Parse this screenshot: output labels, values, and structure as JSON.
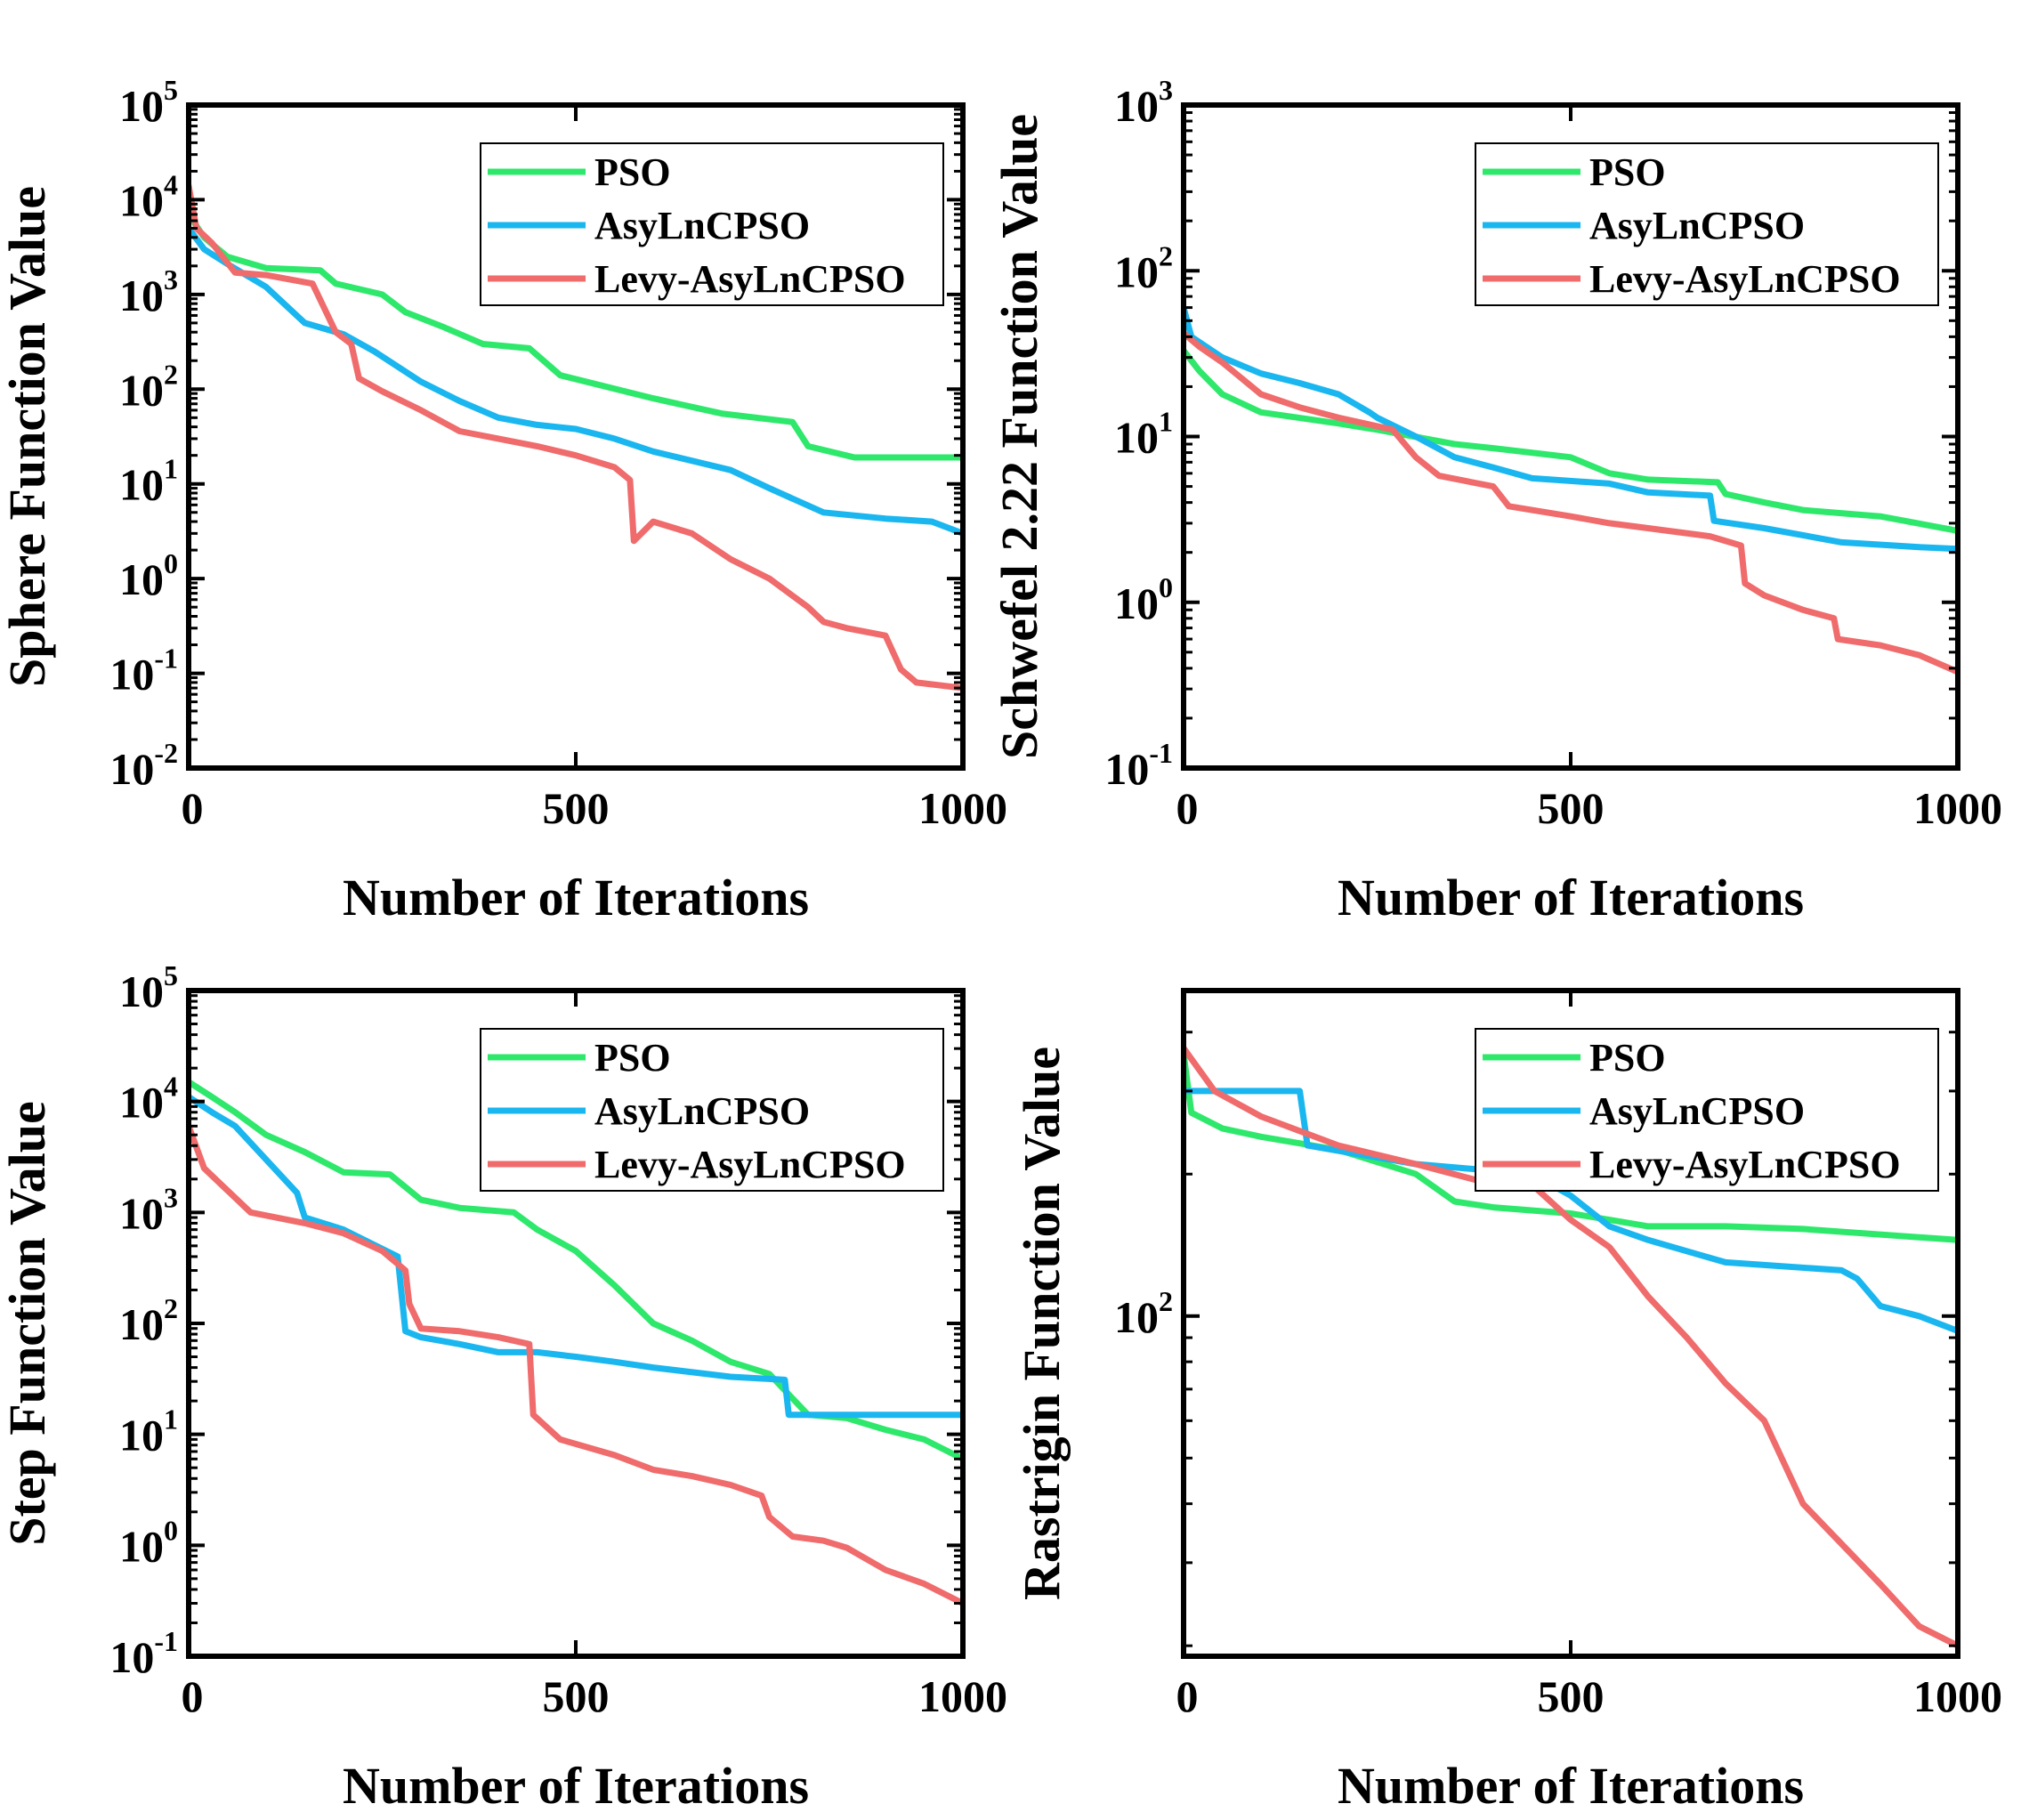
{
  "chart_data": [
    {
      "type": "line",
      "title": "",
      "xlabel": "Number of Iterations",
      "ylabel": "Sphere Function Value",
      "yscale": "log",
      "xlim": [
        0,
        1000
      ],
      "ylim_exp": [
        -2,
        5
      ],
      "xticks": [
        0,
        500,
        1000
      ],
      "yticks_exp": [
        -2,
        -1,
        0,
        1,
        2,
        3,
        4,
        5
      ],
      "legend_position": "top-right",
      "series": [
        {
          "name": "PSO",
          "color": "#2ee86b",
          "points": [
            [
              0,
              7000
            ],
            [
              20,
              4000
            ],
            [
              50,
              2500
            ],
            [
              100,
              1900
            ],
            [
              170,
              1800
            ],
            [
              190,
              1300
            ],
            [
              250,
              1000
            ],
            [
              280,
              650
            ],
            [
              330,
              450
            ],
            [
              380,
              300
            ],
            [
              440,
              270
            ],
            [
              480,
              140
            ],
            [
              600,
              80
            ],
            [
              690,
              55
            ],
            [
              780,
              45
            ],
            [
              800,
              25
            ],
            [
              860,
              19
            ],
            [
              1000,
              19
            ]
          ]
        },
        {
          "name": "AsyLnCPSO",
          "color": "#1ab6ef",
          "points": [
            [
              0,
              5000
            ],
            [
              20,
              3000
            ],
            [
              50,
              2100
            ],
            [
              100,
              1200
            ],
            [
              150,
              500
            ],
            [
              200,
              380
            ],
            [
              240,
              250
            ],
            [
              300,
              120
            ],
            [
              350,
              75
            ],
            [
              400,
              50
            ],
            [
              450,
              42
            ],
            [
              500,
              38
            ],
            [
              550,
              30
            ],
            [
              600,
              22
            ],
            [
              700,
              14
            ],
            [
              750,
              9
            ],
            [
              820,
              5
            ],
            [
              900,
              4.3
            ],
            [
              960,
              4
            ],
            [
              1000,
              3
            ]
          ]
        },
        {
          "name": "Levy-AsyLnCPSO",
          "color": "#f06b6b",
          "points": [
            [
              0,
              14000
            ],
            [
              10,
              5000
            ],
            [
              30,
              3500
            ],
            [
              60,
              1700
            ],
            [
              100,
              1600
            ],
            [
              160,
              1300
            ],
            [
              190,
              400
            ],
            [
              210,
              300
            ],
            [
              220,
              130
            ],
            [
              250,
              95
            ],
            [
              300,
              60
            ],
            [
              350,
              36
            ],
            [
              400,
              30
            ],
            [
              450,
              25
            ],
            [
              500,
              20
            ],
            [
              550,
              15
            ],
            [
              570,
              11
            ],
            [
              575,
              2.5
            ],
            [
              600,
              4
            ],
            [
              650,
              3
            ],
            [
              700,
              1.6
            ],
            [
              750,
              1
            ],
            [
              800,
              0.5
            ],
            [
              820,
              0.35
            ],
            [
              850,
              0.3
            ],
            [
              900,
              0.25
            ],
            [
              920,
              0.11
            ],
            [
              940,
              0.08
            ],
            [
              1000,
              0.07
            ]
          ]
        }
      ]
    },
    {
      "type": "line",
      "title": "",
      "xlabel": "Number of Iterations",
      "ylabel": "Schwefel 2.22 Function Value",
      "yscale": "log",
      "xlim": [
        0,
        1000
      ],
      "ylim_exp": [
        -1,
        3
      ],
      "xticks": [
        0,
        500,
        1000
      ],
      "yticks_exp": [
        -1,
        0,
        1,
        2,
        3
      ],
      "legend_position": "top-right",
      "series": [
        {
          "name": "PSO",
          "color": "#2ee86b",
          "points": [
            [
              0,
              33
            ],
            [
              20,
              25
            ],
            [
              50,
              18
            ],
            [
              100,
              14
            ],
            [
              200,
              12
            ],
            [
              250,
              11
            ],
            [
              350,
              9
            ],
            [
              400,
              8.5
            ],
            [
              500,
              7.5
            ],
            [
              550,
              6
            ],
            [
              600,
              5.5
            ],
            [
              690,
              5.3
            ],
            [
              700,
              4.5
            ],
            [
              750,
              4
            ],
            [
              800,
              3.6
            ],
            [
              900,
              3.3
            ],
            [
              1000,
              2.7
            ]
          ]
        },
        {
          "name": "AsyLnCPSO",
          "color": "#1ab6ef",
          "points": [
            [
              0,
              60
            ],
            [
              10,
              40
            ],
            [
              50,
              30
            ],
            [
              100,
              24
            ],
            [
              150,
              21
            ],
            [
              200,
              18
            ],
            [
              240,
              14
            ],
            [
              250,
              13
            ],
            [
              300,
              10
            ],
            [
              350,
              7.5
            ],
            [
              400,
              6.5
            ],
            [
              450,
              5.6
            ],
            [
              550,
              5.2
            ],
            [
              600,
              4.6
            ],
            [
              680,
              4.4
            ],
            [
              685,
              3.1
            ],
            [
              750,
              2.8
            ],
            [
              850,
              2.3
            ],
            [
              950,
              2.15
            ],
            [
              1000,
              2.1
            ]
          ]
        },
        {
          "name": "Levy-AsyLnCPSO",
          "color": "#f06b6b",
          "points": [
            [
              0,
              42
            ],
            [
              20,
              35
            ],
            [
              50,
              28
            ],
            [
              100,
              18
            ],
            [
              150,
              15
            ],
            [
              200,
              13
            ],
            [
              270,
              11
            ],
            [
              300,
              7.5
            ],
            [
              330,
              5.8
            ],
            [
              400,
              5
            ],
            [
              420,
              3.8
            ],
            [
              500,
              3.3
            ],
            [
              550,
              3
            ],
            [
              600,
              2.8
            ],
            [
              680,
              2.5
            ],
            [
              720,
              2.2
            ],
            [
              725,
              1.3
            ],
            [
              750,
              1.1
            ],
            [
              800,
              0.9
            ],
            [
              840,
              0.8
            ],
            [
              845,
              0.6
            ],
            [
              900,
              0.55
            ],
            [
              950,
              0.48
            ],
            [
              1000,
              0.38
            ]
          ]
        }
      ]
    },
    {
      "type": "line",
      "title": "",
      "xlabel": "Number of Iterations",
      "ylabel": "Step Function Value",
      "yscale": "log",
      "xlim": [
        0,
        1000
      ],
      "ylim_exp": [
        -1,
        5
      ],
      "xticks": [
        0,
        500,
        1000
      ],
      "yticks_exp": [
        -1,
        0,
        1,
        2,
        3,
        4,
        5
      ],
      "legend_position": "top-right",
      "series": [
        {
          "name": "PSO",
          "color": "#2ee86b",
          "points": [
            [
              0,
              15000
            ],
            [
              30,
              11000
            ],
            [
              60,
              8000
            ],
            [
              100,
              5000
            ],
            [
              150,
              3500
            ],
            [
              200,
              2300
            ],
            [
              260,
              2200
            ],
            [
              300,
              1300
            ],
            [
              350,
              1100
            ],
            [
              420,
              1000
            ],
            [
              450,
              700
            ],
            [
              500,
              450
            ],
            [
              550,
              220
            ],
            [
              600,
              100
            ],
            [
              650,
              70
            ],
            [
              700,
              45
            ],
            [
              750,
              35
            ],
            [
              800,
              15
            ],
            [
              850,
              14
            ],
            [
              900,
              11
            ],
            [
              950,
              9
            ],
            [
              1000,
              6
            ]
          ]
        },
        {
          "name": "AsyLnCPSO",
          "color": "#1ab6ef",
          "points": [
            [
              0,
              11000
            ],
            [
              30,
              8000
            ],
            [
              60,
              6000
            ],
            [
              100,
              3000
            ],
            [
              140,
              1500
            ],
            [
              150,
              900
            ],
            [
              200,
              700
            ],
            [
              270,
              400
            ],
            [
              280,
              85
            ],
            [
              300,
              75
            ],
            [
              350,
              65
            ],
            [
              400,
              55
            ],
            [
              450,
              55
            ],
            [
              500,
              50
            ],
            [
              550,
              45
            ],
            [
              600,
              40
            ],
            [
              700,
              33
            ],
            [
              770,
              31
            ],
            [
              775,
              15
            ],
            [
              850,
              15
            ],
            [
              1000,
              15
            ]
          ]
        },
        {
          "name": "Levy-AsyLnCPSO",
          "color": "#f06b6b",
          "points": [
            [
              0,
              6000
            ],
            [
              20,
              2500
            ],
            [
              80,
              1000
            ],
            [
              150,
              800
            ],
            [
              200,
              650
            ],
            [
              250,
              450
            ],
            [
              280,
              300
            ],
            [
              285,
              150
            ],
            [
              300,
              90
            ],
            [
              350,
              85
            ],
            [
              400,
              75
            ],
            [
              440,
              65
            ],
            [
              445,
              15
            ],
            [
              480,
              9
            ],
            [
              550,
              6.5
            ],
            [
              600,
              4.8
            ],
            [
              650,
              4.2
            ],
            [
              700,
              3.5
            ],
            [
              740,
              2.8
            ],
            [
              750,
              1.8
            ],
            [
              780,
              1.2
            ],
            [
              820,
              1.1
            ],
            [
              850,
              0.95
            ],
            [
              900,
              0.6
            ],
            [
              950,
              0.45
            ],
            [
              1000,
              0.3
            ]
          ]
        }
      ]
    },
    {
      "type": "line",
      "title": "",
      "xlabel": "Number of Iterations",
      "ylabel": "Rastrigin Function Value",
      "yscale": "log",
      "xlim": [
        0,
        1000
      ],
      "ylim": [
        19,
        490
      ],
      "xticks": [
        0,
        500,
        1000
      ],
      "yticks_exp": [
        2
      ],
      "legend_position": "top-right",
      "series": [
        {
          "name": "PSO",
          "color": "#2ee86b",
          "points": [
            [
              0,
              360
            ],
            [
              10,
              270
            ],
            [
              50,
              250
            ],
            [
              100,
              240
            ],
            [
              200,
              225
            ],
            [
              300,
              200
            ],
            [
              350,
              175
            ],
            [
              400,
              170
            ],
            [
              500,
              165
            ],
            [
              550,
              160
            ],
            [
              600,
              155
            ],
            [
              700,
              155
            ],
            [
              800,
              153
            ],
            [
              1000,
              145
            ]
          ]
        },
        {
          "name": "AsyLnCPSO",
          "color": "#1ab6ef",
          "points": [
            [
              0,
              300
            ],
            [
              150,
              300
            ],
            [
              160,
              230
            ],
            [
              300,
              210
            ],
            [
              450,
              200
            ],
            [
              500,
              180
            ],
            [
              550,
              155
            ],
            [
              600,
              145
            ],
            [
              700,
              130
            ],
            [
              850,
              125
            ],
            [
              870,
              120
            ],
            [
              900,
              105
            ],
            [
              950,
              100
            ],
            [
              1000,
              93
            ]
          ]
        },
        {
          "name": "Levy-AsyLnCPSO",
          "color": "#f06b6b",
          "points": [
            [
              0,
              370
            ],
            [
              40,
              300
            ],
            [
              100,
              265
            ],
            [
              200,
              230
            ],
            [
              300,
              210
            ],
            [
              400,
              190
            ],
            [
              450,
              190
            ],
            [
              500,
              160
            ],
            [
              550,
              140
            ],
            [
              600,
              110
            ],
            [
              650,
              90
            ],
            [
              700,
              72
            ],
            [
              750,
              60
            ],
            [
              800,
              40
            ],
            [
              900,
              27
            ],
            [
              950,
              22
            ],
            [
              1000,
              20
            ]
          ]
        }
      ]
    }
  ]
}
